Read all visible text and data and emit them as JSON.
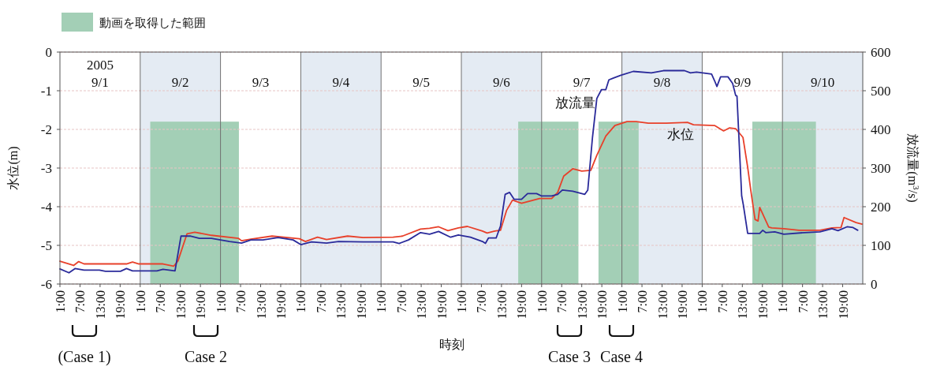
{
  "chart_data": {
    "type": "line",
    "xlabel": "時刻",
    "ylabel": "水位(m)",
    "y2label": "放流量(m$^{3}$/s)",
    "xlim": [
      "2005-09-01T01:00",
      "2005-09-11T01:00"
    ],
    "xticks": [
      {
        "value": "2005-09-01T01:00",
        "label": "1:00"
      },
      {
        "value": "2005-09-01T07:00",
        "label": "7:00"
      },
      {
        "value": "2005-09-01T13:00",
        "label": "13:00"
      },
      {
        "value": "2005-09-01T19:00",
        "label": "19:00"
      },
      {
        "value": "2005-09-02T01:00",
        "label": "1:00"
      },
      {
        "value": "2005-09-02T07:00",
        "label": "7:00"
      },
      {
        "value": "2005-09-02T13:00",
        "label": "13:00"
      },
      {
        "value": "2005-09-02T19:00",
        "label": "19:00"
      },
      {
        "value": "2005-09-03T01:00",
        "label": "1:00"
      },
      {
        "value": "2005-09-03T07:00",
        "label": "7:00"
      },
      {
        "value": "2005-09-03T13:00",
        "label": "13:00"
      },
      {
        "value": "2005-09-03T19:00",
        "label": "19:00"
      },
      {
        "value": "2005-09-04T01:00",
        "label": "1:00"
      },
      {
        "value": "2005-09-04T07:00",
        "label": "7:00"
      },
      {
        "value": "2005-09-04T13:00",
        "label": "13:00"
      },
      {
        "value": "2005-09-04T19:00",
        "label": "19:00"
      },
      {
        "value": "2005-09-05T01:00",
        "label": "1:00"
      },
      {
        "value": "2005-09-05T07:00",
        "label": "7:00"
      },
      {
        "value": "2005-09-05T13:00",
        "label": "13:00"
      },
      {
        "value": "2005-09-05T19:00",
        "label": "19:00"
      },
      {
        "value": "2005-09-06T01:00",
        "label": "1:00"
      },
      {
        "value": "2005-09-06T07:00",
        "label": "7:00"
      },
      {
        "value": "2005-09-06T13:00",
        "label": "13:00"
      },
      {
        "value": "2005-09-06T19:00",
        "label": "19:00"
      },
      {
        "value": "2005-09-07T01:00",
        "label": "1:00"
      },
      {
        "value": "2005-09-07T07:00",
        "label": "7:00"
      },
      {
        "value": "2005-09-07T13:00",
        "label": "13:00"
      },
      {
        "value": "2005-09-07T19:00",
        "label": "19:00"
      },
      {
        "value": "2005-09-08T01:00",
        "label": "1:00"
      },
      {
        "value": "2005-09-08T07:00",
        "label": "7:00"
      },
      {
        "value": "2005-09-08T13:00",
        "label": "13:00"
      },
      {
        "value": "2005-09-08T19:00",
        "label": "19:00"
      },
      {
        "value": "2005-09-09T01:00",
        "label": "1:00"
      },
      {
        "value": "2005-09-09T07:00",
        "label": "7:00"
      },
      {
        "value": "2005-09-09T13:00",
        "label": "13:00"
      },
      {
        "value": "2005-09-09T19:00",
        "label": "19:00"
      },
      {
        "value": "2005-09-10T01:00",
        "label": "1:00"
      },
      {
        "value": "2005-09-10T07:00",
        "label": "7:00"
      },
      {
        "value": "2005-09-10T13:00",
        "label": "13:00"
      },
      {
        "value": "2005-09-10T19:00",
        "label": "19:00"
      }
    ],
    "ylim": [
      -6,
      0
    ],
    "yticks": [
      -6,
      -5,
      -4,
      -3,
      -2,
      -1,
      0
    ],
    "y2lim": [
      0,
      600
    ],
    "y2ticks": [
      0,
      100,
      200,
      300,
      400,
      500,
      600
    ],
    "grid": "y",
    "legend": "top left",
    "marker": "none",
    "line_style": "solid",
    "series": [
      {
        "name": "水位",
        "color": "#e8402a",
        "x": [
          "2005-09-01T01:00",
          "2005-09-01T05:06",
          "2005-09-01T06:36",
          "2005-09-01T08:12",
          "2005-09-01T12:48",
          "2005-09-01T20:54",
          "2005-09-01T22:42",
          "2005-09-02T00:36",
          "2005-09-02T07:48",
          "2005-09-02T11:00",
          "2005-09-02T12:18",
          "2005-09-02T15:00",
          "2005-09-02T17:18",
          "2005-09-02T22:18",
          "2005-09-03T06:24",
          "2005-09-03T07:18",
          "2005-09-03T10:06",
          "2005-09-03T16:24",
          "2005-09-04T00:36",
          "2005-09-04T02:24",
          "2005-09-04T06:00",
          "2005-09-04T08:42",
          "2005-09-04T15:00",
          "2005-09-04T19:36",
          "2005-09-05T04:36",
          "2005-09-05T07:24",
          "2005-09-05T12:48",
          "2005-09-05T15:30",
          "2005-09-05T18:12",
          "2005-09-05T21:00",
          "2005-09-06T00:06",
          "2005-09-06T02:48",
          "2005-09-06T07:18",
          "2005-09-06T08:42",
          "2005-09-06T11:00",
          "2005-09-06T12:42",
          "2005-09-06T14:30",
          "2005-09-06T16:18",
          "2005-09-06T19:00",
          "2005-09-07T00:24",
          "2005-09-07T04:00",
          "2005-09-07T05:48",
          "2005-09-07T07:36",
          "2005-09-07T10:18",
          "2005-09-07T13:00",
          "2005-09-07T15:42",
          "2005-09-07T17:30",
          "2005-09-07T20:12",
          "2005-09-07T22:54",
          "2005-09-08T02:30",
          "2005-09-08T05:18",
          "2005-09-08T08:54",
          "2005-09-08T11:36",
          "2005-09-08T14:18",
          "2005-09-08T20:36",
          "2005-09-08T22:24",
          "2005-09-09T04:42",
          "2005-09-09T07:24",
          "2005-09-09T09:12",
          "2005-09-09T11:00",
          "2005-09-09T13:12",
          "2005-09-09T14:36",
          "2005-09-09T15:30",
          "2005-09-09T16:48",
          "2005-09-09T17:42",
          "2005-09-09T18:12",
          "2005-09-09T20:54",
          "2005-09-09T21:48",
          "2005-09-10T01:24",
          "2005-09-10T05:54",
          "2005-09-10T12:12",
          "2005-09-10T15:48",
          "2005-09-10T18:30",
          "2005-09-10T19:24",
          "2005-09-10T23:00",
          "2005-09-11T00:48"
        ],
        "values": [
          -5.41,
          -5.52,
          -5.42,
          -5.48,
          -5.48,
          -5.48,
          -5.43,
          -5.48,
          -5.48,
          -5.54,
          -5.4,
          -4.7,
          -4.66,
          -4.74,
          -4.82,
          -4.88,
          -4.84,
          -4.76,
          -4.83,
          -4.9,
          -4.79,
          -4.85,
          -4.76,
          -4.8,
          -4.79,
          -4.76,
          -4.58,
          -4.56,
          -4.52,
          -4.62,
          -4.55,
          -4.51,
          -4.63,
          -4.68,
          -4.63,
          -4.61,
          -4.1,
          -3.83,
          -3.91,
          -3.79,
          -3.79,
          -3.63,
          -3.21,
          -3.02,
          -3.08,
          -3.06,
          -2.67,
          -2.17,
          -1.9,
          -1.8,
          -1.8,
          -1.84,
          -1.84,
          -1.84,
          -1.82,
          -1.88,
          -1.9,
          -2.04,
          -1.96,
          -1.98,
          -2.21,
          -2.98,
          -3.56,
          -4.33,
          -4.37,
          -4.02,
          -4.53,
          -4.55,
          -4.57,
          -4.61,
          -4.61,
          -4.55,
          -4.54,
          -4.28,
          -4.41,
          -4.45
        ]
      },
      {
        "name": "放流量",
        "color": "#2a2a9a",
        "axis": "y2",
        "x": [
          "2005-09-01T01:00",
          "2005-09-01T03:42",
          "2005-09-01T05:30",
          "2005-09-01T08:12",
          "2005-09-01T12:48",
          "2005-09-01T14:36",
          "2005-09-01T19:06",
          "2005-09-01T20:54",
          "2005-09-01T22:42",
          "2005-09-02T06:00",
          "2005-09-02T07:48",
          "2005-09-02T11:24",
          "2005-09-02T13:12",
          "2005-09-02T15:54",
          "2005-09-02T18:42",
          "2005-09-02T22:18",
          "2005-09-03T03:42",
          "2005-09-03T07:18",
          "2005-09-03T10:06",
          "2005-09-03T13:42",
          "2005-09-03T18:12",
          "2005-09-03T22:42",
          "2005-09-04T01:00",
          "2005-09-04T04:12",
          "2005-09-04T08:42",
          "2005-09-04T12:18",
          "2005-09-04T19:36",
          "2005-09-05T04:36",
          "2005-09-05T06:24",
          "2005-09-05T09:12",
          "2005-09-05T12:48",
          "2005-09-05T15:30",
          "2005-09-05T18:12",
          "2005-09-05T21:48",
          "2005-09-06T00:06",
          "2005-09-06T03:42",
          "2005-09-06T07:18",
          "2005-09-06T08:12",
          "2005-09-06T09:06",
          "2005-09-06T11:24",
          "2005-09-06T12:42",
          "2005-09-06T14:06",
          "2005-09-06T15:24",
          "2005-09-06T16:48",
          "2005-09-06T19:00",
          "2005-09-06T20:48",
          "2005-09-06T23:30",
          "2005-09-07T00:54",
          "2005-09-07T04:00",
          "2005-09-07T05:48",
          "2005-09-07T07:12",
          "2005-09-07T10:18",
          "2005-09-07T13:54",
          "2005-09-07T14:48",
          "2005-09-07T16:12",
          "2005-09-07T17:30",
          "2005-09-07T18:54",
          "2005-09-07T20:12",
          "2005-09-07T21:06",
          "2005-09-07T22:30",
          "2005-09-08T00:42",
          "2005-09-08T04:24",
          "2005-09-08T09:48",
          "2005-09-08T13:24",
          "2005-09-08T19:42",
          "2005-09-08T21:30",
          "2005-09-08T23:18",
          "2005-09-09T03:48",
          "2005-09-09T04:42",
          "2005-09-09T05:24",
          "2005-09-09T06:30",
          "2005-09-09T08:42",
          "2005-09-09T10:06",
          "2005-09-09T11:00",
          "2005-09-09T11:24",
          "2005-09-09T12:48",
          "2005-09-09T13:18",
          "2005-09-09T14:36",
          "2005-09-09T18:12",
          "2005-09-09T19:06",
          "2005-09-09T20:00",
          "2005-09-09T22:42",
          "2005-09-10T01:24",
          "2005-09-10T07:42",
          "2005-09-10T12:12",
          "2005-09-10T15:48",
          "2005-09-10T17:36",
          "2005-09-10T20:18",
          "2005-09-10T22:06",
          "2005-09-10T23:30"
        ],
        "values": [
          39,
          29,
          40,
          36,
          36,
          33,
          33,
          40,
          34,
          34,
          38,
          34,
          124,
          124,
          118,
          118,
          110,
          106,
          114,
          114,
          120,
          114,
          102,
          109,
          106,
          110,
          109,
          109,
          105,
          114,
          133,
          129,
          136,
          121,
          127,
          121,
          110,
          105,
          119,
          119,
          150,
          232,
          237,
          219,
          219,
          234,
          234,
          228,
          228,
          232,
          243,
          240,
          232,
          243,
          379,
          480,
          503,
          503,
          528,
          533,
          540,
          550,
          546,
          552,
          552,
          546,
          548,
          543,
          526,
          511,
          536,
          536,
          519,
          488,
          486,
          228,
          205,
          131,
          131,
          139,
          133,
          135,
          129,
          133,
          135,
          143,
          138,
          148,
          146,
          139
        ]
      }
    ],
    "bands": [
      {
        "axis": "x",
        "from": "2005-09-02T01:00",
        "to": "2005-09-03T01:00",
        "color": "#e4ebf3"
      },
      {
        "axis": "x",
        "from": "2005-09-04T01:00",
        "to": "2005-09-05T01:00",
        "color": "#e4ebf3"
      },
      {
        "axis": "x",
        "from": "2005-09-06T01:00",
        "to": "2005-09-07T01:00",
        "color": "#e4ebf3"
      },
      {
        "axis": "x",
        "from": "2005-09-08T01:00",
        "to": "2005-09-09T01:00",
        "color": "#e4ebf3"
      },
      {
        "axis": "x",
        "from": "2005-09-10T01:00",
        "to": "2005-09-11T01:00",
        "color": "#e4ebf3"
      },
      {
        "axis": "x",
        "from": "2005-09-02T04:00",
        "to": "2005-09-03T06:30",
        "label": "動画を取得した範囲",
        "color": "#a3cfb6"
      },
      {
        "axis": "x",
        "from": "2005-09-06T18:00",
        "to": "2005-09-07T12:00",
        "color": "#a3cfb6"
      },
      {
        "axis": "x",
        "from": "2005-09-07T18:00",
        "to": "2005-09-08T06:00",
        "color": "#a3cfb6"
      },
      {
        "axis": "x",
        "from": "2005-09-09T16:00",
        "to": "2005-09-10T11:00",
        "color": "#a3cfb6"
      }
    ],
    "ref_lines": [
      {
        "axis": "x",
        "value": "2005-09-02T01:00",
        "label": "9/2"
      },
      {
        "axis": "x",
        "value": "2005-09-03T01:00",
        "label": "9/3"
      },
      {
        "axis": "x",
        "value": "2005-09-04T01:00",
        "label": "9/4"
      },
      {
        "axis": "x",
        "value": "2005-09-05T01:00",
        "label": "9/5"
      },
      {
        "axis": "x",
        "value": "2005-09-06T01:00",
        "label": "9/6"
      },
      {
        "axis": "x",
        "value": "2005-09-07T01:00",
        "label": "9/7"
      },
      {
        "axis": "x",
        "value": "2005-09-08T01:00",
        "label": "9/8"
      },
      {
        "axis": "x",
        "value": "2005-09-09T01:00",
        "label": "9/9"
      },
      {
        "axis": "x",
        "value": "2005-09-10T01:00",
        "label": "9/10"
      }
    ],
    "annotations": [
      "2005\n9/1",
      "(Case 1)",
      "Case 2",
      "Case 3",
      "Case 4"
    ]
  }
}
